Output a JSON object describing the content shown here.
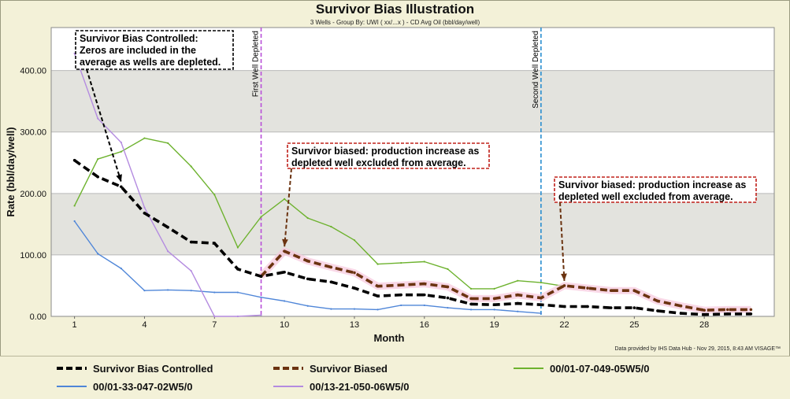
{
  "chart_data": {
    "type": "line",
    "title": "Survivor Bias Illustration",
    "subtitle": "3 Wells - Group By: UWI ( xx/...x ) - CD Avg Oil (bbl/day/well)",
    "xlabel": "Month",
    "ylabel": "Rate (bbl/day/well)",
    "xlim": [
      0,
      31
    ],
    "ylim": [
      0,
      470
    ],
    "x_ticks": [
      1,
      4,
      7,
      10,
      13,
      16,
      19,
      22,
      25,
      28
    ],
    "y_ticks": [
      "0.00",
      "100.00",
      "200.00",
      "300.00",
      "400.00"
    ],
    "grid": "horizontal",
    "legend_position": "bottom",
    "series": [
      {
        "name": "00/01-07-049-05W5/0",
        "color": "#6db22e",
        "style": "solid",
        "x": [
          1,
          2,
          3,
          4,
          5,
          6,
          7,
          8,
          9,
          10,
          11,
          12,
          13,
          14,
          15,
          16,
          17,
          18,
          19,
          20,
          21,
          22
        ],
        "values": [
          180,
          256,
          268,
          290,
          282,
          244,
          198,
          112,
          162,
          191,
          160,
          146,
          124,
          85,
          87,
          89,
          77,
          45,
          45,
          58,
          55,
          49
        ]
      },
      {
        "name": "00/01-33-047-02W5/0",
        "color": "#4f86d8",
        "style": "solid",
        "x": [
          1,
          2,
          3,
          4,
          5,
          6,
          7,
          8,
          9,
          10,
          11,
          12,
          13,
          14,
          15,
          16,
          17,
          18,
          19,
          20,
          21
        ],
        "values": [
          155,
          102,
          78,
          42,
          43,
          42,
          39,
          39,
          31,
          25,
          17,
          12,
          12,
          11,
          18,
          18,
          14,
          11,
          11,
          8,
          5
        ]
      },
      {
        "name": "00/13-21-050-06W5/0",
        "color": "#b48be0",
        "style": "solid",
        "x": [
          1,
          2,
          3,
          4,
          5,
          6,
          7,
          8,
          9
        ],
        "values": [
          428,
          322,
          283,
          177,
          106,
          74,
          0,
          0,
          2
        ]
      },
      {
        "name": "Survivor Bias Controlled",
        "color": "#000000",
        "style": "dashed",
        "x": [
          1,
          2,
          3,
          4,
          5,
          6,
          7,
          8,
          9,
          10,
          11,
          12,
          13,
          14,
          15,
          16,
          17,
          18,
          19,
          20,
          21,
          22,
          23,
          24,
          25,
          26,
          27,
          28,
          29,
          30
        ],
        "values": [
          254,
          227,
          211,
          168,
          145,
          121,
          119,
          77,
          65,
          72,
          61,
          56,
          46,
          33,
          35,
          35,
          30,
          20,
          19,
          21,
          19,
          16,
          16,
          14,
          14,
          9,
          5,
          3,
          4,
          4
        ]
      },
      {
        "name": "Survivor Biased",
        "color": "#6b3310",
        "style": "dashed",
        "x": [
          9,
          10,
          11,
          12,
          13,
          14,
          15,
          16,
          17,
          18,
          19,
          20,
          21,
          22,
          23,
          24,
          25,
          26,
          27,
          28,
          29,
          30
        ],
        "values": [
          65,
          106,
          90,
          80,
          71,
          49,
          51,
          53,
          48,
          29,
          29,
          35,
          30,
          50,
          46,
          42,
          42,
          25,
          17,
          10,
          11,
          11
        ]
      }
    ],
    "vlines": [
      {
        "x": 9,
        "label": "First Well Depleted",
        "color": "#b84fd8"
      },
      {
        "x": 21,
        "label": "Second Well Depleted",
        "color": "#2a8fd0"
      }
    ],
    "annotations": [
      {
        "text": [
          "Survivor Bias Controlled:",
          "Zeros are included in the",
          "average as wells are depleted."
        ],
        "color": "#000000",
        "arrow_to": [
          3,
          211
        ]
      },
      {
        "text": [
          "Survivor biased: production increase as",
          "depleted well excluded from average."
        ],
        "color": "#c0201a",
        "arrow_to": [
          10,
          106
        ]
      },
      {
        "text": [
          "Survivor biased: production increase as",
          "depleted well excluded from average."
        ],
        "color": "#c0201a",
        "arrow_to": [
          22,
          50
        ]
      }
    ]
  },
  "credit": "Data provided by IHS Data Hub - Nov 29, 2015, 8:43 AM VISAGE™",
  "legend": [
    {
      "name": "Survivor Bias Controlled",
      "color": "#000000",
      "style": "dashed",
      "bold": true
    },
    {
      "name": "Survivor Biased",
      "color": "#6b3310",
      "style": "dashed",
      "bold": true
    },
    {
      "name": "00/01-07-049-05W5/0",
      "color": "#6db22e",
      "style": "solid",
      "bold": true
    },
    {
      "name": "00/01-33-047-02W5/0",
      "color": "#4f86d8",
      "style": "solid",
      "bold": true
    },
    {
      "name": "00/13-21-050-06W5/0",
      "color": "#b48be0",
      "style": "solid",
      "bold": true
    }
  ]
}
